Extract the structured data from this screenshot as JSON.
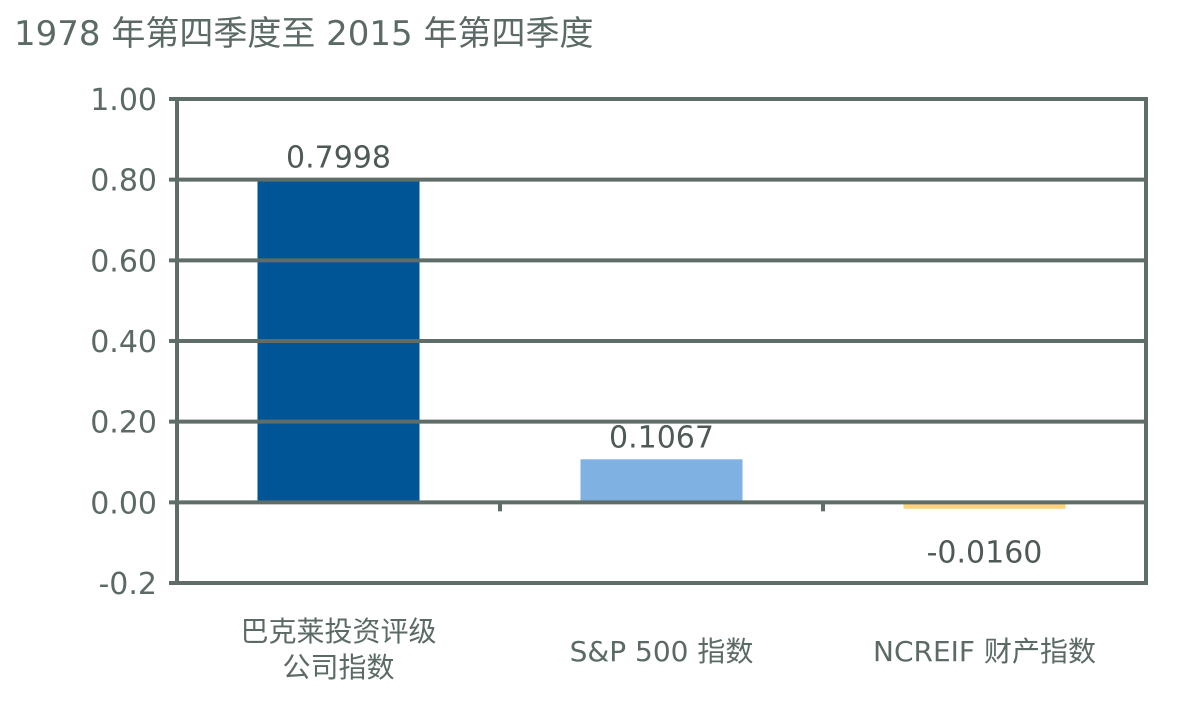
{
  "chart_data": {
    "type": "bar",
    "title": "1978 年第四季度至 2015 年第四季度",
    "categories": [
      "巴克莱投资评级公司指数",
      "S&P 500  指数",
      "NCREIF  财产指数"
    ],
    "category_lines": [
      [
        "巴克莱投资评级",
        "公司指数"
      ],
      [
        "S&P 500  指数"
      ],
      [
        "NCREIF  财产指数"
      ]
    ],
    "values": [
      0.7998,
      0.1067,
      -0.016
    ],
    "data_labels": [
      "0.7998",
      "0.1067",
      "-0.0160"
    ],
    "bar_colors": [
      "#005596",
      "#7fb2e3",
      "#fdd37a"
    ],
    "axis_color": "#5f6d68",
    "yticks": [
      1.0,
      0.8,
      0.6,
      0.4,
      0.2,
      0.0,
      -0.2
    ],
    "ytick_labels": [
      "1.00",
      "0.80",
      "0.60",
      "0.40",
      "0.20",
      "0.00",
      "-0.2"
    ],
    "ylim": [
      -0.2,
      1.0
    ],
    "xlabel": "",
    "ylabel": "",
    "grid": true,
    "legend": "none"
  }
}
